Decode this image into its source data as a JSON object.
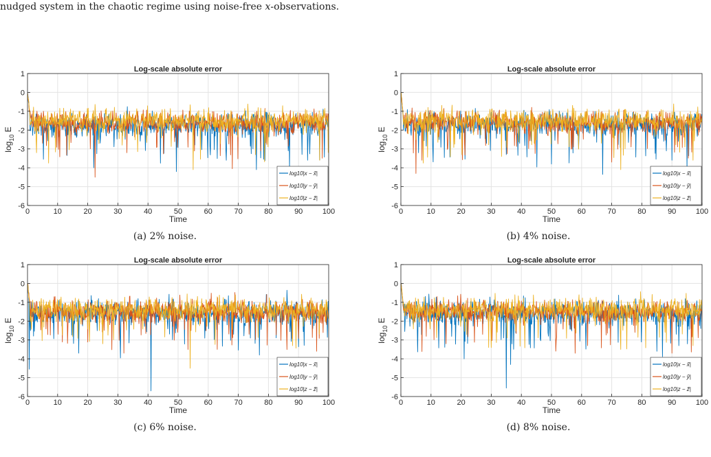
{
  "intro": {
    "before": "nudged system in the chaotic regime using noise-free ",
    "var": "x",
    "after": "-observations."
  },
  "chart_data": [
    {
      "type": "line",
      "title": "Log-scale absolute error",
      "xlabel": "Time",
      "ylabel_main": "log",
      "ylabel_sub": "10",
      "ylabel_tail": " E",
      "xlim": [
        0,
        100
      ],
      "ylim": [
        -6,
        1
      ],
      "xticks": [
        "0",
        "10",
        "20",
        "30",
        "40",
        "50",
        "60",
        "70",
        "80",
        "90",
        "100"
      ],
      "yticks": [
        "-6",
        "-5",
        "-4",
        "-3",
        "-2",
        "-1",
        "0",
        "1"
      ],
      "grid": true,
      "legend_position": "bottom-right",
      "caption": "(a) 2% noise.",
      "series": [
        {
          "name": "log10|x − x̃|",
          "color": "#0072BD",
          "mean": -1.75,
          "spread": 0.45,
          "dips": [
            [
              22,
              -4.0
            ],
            [
              66,
              -3.6
            ],
            [
              76,
              -4.1
            ],
            [
              87,
              -4.0
            ],
            [
              93,
              -3.6
            ]
          ]
        },
        {
          "name": "log10|y − ỹ|",
          "color": "#D95319",
          "mean": -1.6,
          "spread": 0.4,
          "dips": [
            [
              22.5,
              -4.5
            ],
            [
              68,
              -4.05
            ],
            [
              33,
              -3.2
            ]
          ]
        },
        {
          "name": "log10|z − z̃|",
          "color": "#EDB120",
          "mean": -1.5,
          "spread": 0.4,
          "dips": [
            [
              7,
              -3.75
            ],
            [
              55,
              -4.1
            ],
            [
              97,
              -3.6
            ]
          ]
        }
      ]
    },
    {
      "type": "line",
      "title": "Log-scale absolute error",
      "xlabel": "Time",
      "ylabel_main": "log",
      "ylabel_sub": "10",
      "ylabel_tail": " E",
      "xlim": [
        0,
        100
      ],
      "ylim": [
        -6,
        1
      ],
      "xticks": [
        "0",
        "10",
        "20",
        "30",
        "40",
        "50",
        "60",
        "70",
        "80",
        "90",
        "100"
      ],
      "yticks": [
        "-6",
        "-5",
        "-4",
        "-3",
        "-2",
        "-1",
        "0",
        "1"
      ],
      "grid": true,
      "legend_position": "bottom-right",
      "caption": "(b) 4% noise.",
      "series": [
        {
          "name": "log10|x − x̃|",
          "color": "#0072BD",
          "mean": -1.7,
          "spread": 0.45,
          "dips": [
            [
              50,
              -3.8
            ],
            [
              67,
              -4.35
            ],
            [
              90,
              -3.6
            ],
            [
              35,
              -3.3
            ]
          ]
        },
        {
          "name": "log10|y − ỹ|",
          "color": "#D95319",
          "mean": -1.6,
          "spread": 0.4,
          "dips": [
            [
              5,
              -4.3
            ],
            [
              7,
              -3.6
            ],
            [
              70,
              -3.7
            ]
          ]
        },
        {
          "name": "log10|z − z̃|",
          "color": "#EDB120",
          "mean": -1.5,
          "spread": 0.4,
          "dips": [
            [
              7.5,
              -3.75
            ],
            [
              73,
              -4.1
            ],
            [
              97,
              -3.6
            ]
          ]
        }
      ]
    },
    {
      "type": "line",
      "title": "Log-scale absolute error",
      "xlabel": "Time",
      "ylabel_main": "log",
      "ylabel_sub": "10",
      "ylabel_tail": " E",
      "xlim": [
        0,
        100
      ],
      "ylim": [
        -6,
        1
      ],
      "xticks": [
        "0",
        "10",
        "20",
        "30",
        "40",
        "50",
        "60",
        "70",
        "80",
        "90",
        "100"
      ],
      "yticks": [
        "-6",
        "-5",
        "-4",
        "-3",
        "-2",
        "-1",
        "0",
        "1"
      ],
      "grid": true,
      "legend_position": "bottom-right",
      "caption": "(c) 6% noise.",
      "series": [
        {
          "name": "log10|x − x̃|",
          "color": "#0072BD",
          "mean": -1.6,
          "spread": 0.45,
          "dips": [
            [
              0.5,
              -4.55
            ],
            [
              41,
              -5.7
            ],
            [
              17,
              -3.7
            ],
            [
              77,
              -3.8
            ]
          ]
        },
        {
          "name": "log10|y − ỹ|",
          "color": "#D95319",
          "mean": -1.5,
          "spread": 0.4,
          "dips": [
            [
              32,
              -3.7
            ],
            [
              63,
              -3.5
            ],
            [
              96,
              -3.6
            ]
          ]
        },
        {
          "name": "log10|z − z̃|",
          "color": "#EDB120",
          "mean": -1.4,
          "spread": 0.4,
          "dips": [
            [
              54,
              -4.5
            ],
            [
              25,
              -3.2
            ],
            [
              88,
              -3.3
            ]
          ]
        }
      ]
    },
    {
      "type": "line",
      "title": "Log-scale absolute error",
      "xlabel": "Time",
      "ylabel_main": "log",
      "ylabel_sub": "10",
      "ylabel_tail": " E",
      "xlim": [
        0,
        100
      ],
      "ylim": [
        -6,
        1
      ],
      "xticks": [
        "0",
        "10",
        "20",
        "30",
        "40",
        "50",
        "60",
        "70",
        "80",
        "90",
        "100"
      ],
      "yticks": [
        "-6",
        "-5",
        "-4",
        "-3",
        "-2",
        "-1",
        "0",
        "1"
      ],
      "grid": true,
      "legend_position": "bottom-right",
      "caption": "(d) 8% noise.",
      "series": [
        {
          "name": "log10|x − x̃|",
          "color": "#0072BD",
          "mean": -1.6,
          "spread": 0.45,
          "dips": [
            [
              35,
              -5.55
            ],
            [
              36.5,
              -4.3
            ],
            [
              21,
              -4.0
            ],
            [
              85,
              -3.6
            ]
          ]
        },
        {
          "name": "log10|y − ỹ|",
          "color": "#D95319",
          "mean": -1.5,
          "spread": 0.4,
          "dips": [
            [
              90,
              -3.7
            ],
            [
              15,
              -3.2
            ],
            [
              62,
              -3.3
            ]
          ]
        },
        {
          "name": "log10|z − z̃|",
          "color": "#EDB120",
          "mean": -1.4,
          "spread": 0.4,
          "dips": [
            [
              30,
              -3.4
            ],
            [
              73,
              -3.5
            ],
            [
              97,
              -3.3
            ]
          ]
        }
      ]
    }
  ]
}
